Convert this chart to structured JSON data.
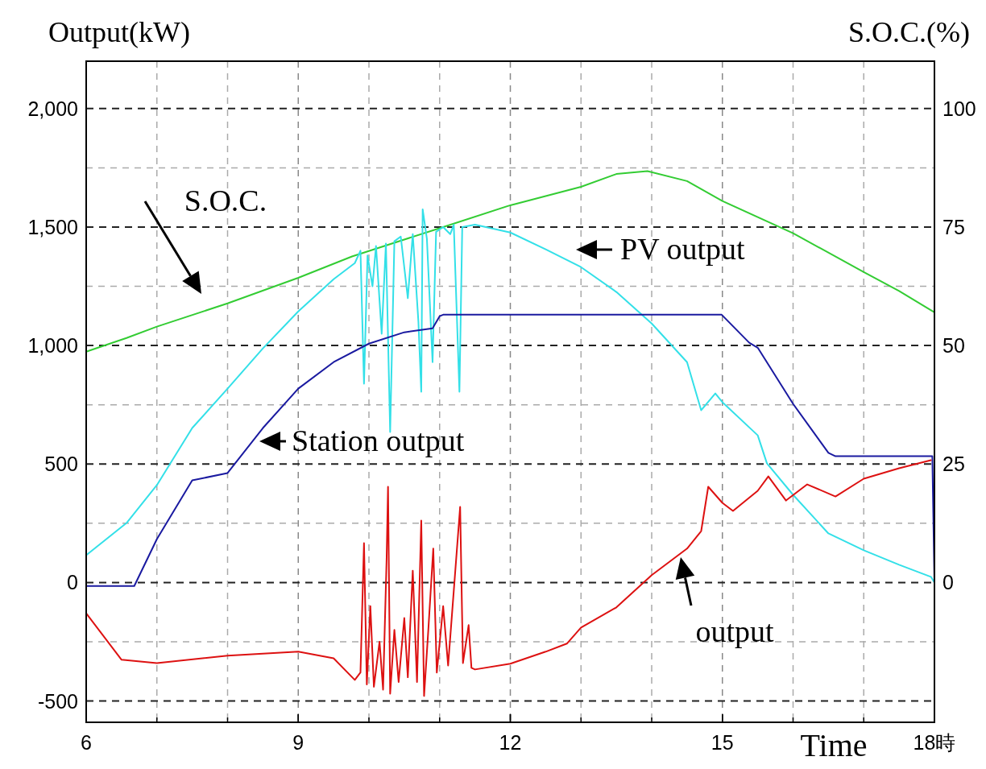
{
  "chart_data": {
    "type": "line",
    "xlabel": "Time",
    "ylabel": "Output(kW)",
    "y2label": "S.O.C.(%)",
    "xlim": [
      6,
      18
    ],
    "xticks": [
      6,
      9,
      12,
      15,
      {
        "value": 18,
        "label": "18時"
      }
    ],
    "ylim": [
      -590,
      2200
    ],
    "yticks": [
      {
        "value": -500,
        "label": "-500"
      },
      0,
      500,
      {
        "value": 1000,
        "label": "1,000"
      },
      {
        "value": 1500,
        "label": "1,500"
      },
      {
        "value": 2000,
        "label": "2,000"
      }
    ],
    "y2lim": [
      -29.5,
      110
    ],
    "y2ticks": [
      0,
      25,
      50,
      75,
      100
    ],
    "grid": true,
    "marker": "none",
    "line_style": "solid",
    "series": [
      {
        "name": "S.O.C.",
        "color": "#33cc33",
        "axis": "y2",
        "x": [
          6,
          6.57,
          7,
          8,
          9,
          9.76,
          11.05,
          12,
          13,
          13.5,
          13.94,
          14.5,
          15,
          16,
          17,
          17.5,
          18
        ],
        "values": [
          48.7,
          51.6,
          54,
          58.9,
          64.3,
          68.8,
          75,
          79.6,
          83.5,
          86.2,
          86.8,
          84.7,
          80.5,
          73.7,
          65.5,
          61.5,
          57
        ]
      },
      {
        "name": "PV output",
        "color": "#33e0e8",
        "x": [
          6,
          6.57,
          7,
          7.5,
          8,
          8.5,
          9,
          9.5,
          9.8,
          9.88,
          9.93,
          9.98,
          10.05,
          10.1,
          10.18,
          10.24,
          10.3,
          10.36,
          10.45,
          10.55,
          10.62,
          10.7,
          10.74,
          10.76,
          10.82,
          10.9,
          10.95,
          11.05,
          11.15,
          11.2,
          11.28,
          11.32,
          11.5,
          12,
          12.5,
          13,
          13.5,
          14,
          14.5,
          14.7,
          14.9,
          15,
          15.5,
          15.63,
          16,
          16.5,
          17,
          17.5,
          17.95,
          18
        ],
        "values": [
          115,
          251,
          411,
          652,
          818,
          988,
          1144,
          1280,
          1348,
          1400,
          839,
          1380,
          1250,
          1420,
          1050,
          1430,
          635,
          1440,
          1460,
          1200,
          1470,
          1100,
          805,
          1575,
          1450,
          930,
          1480,
          1500,
          1470,
          1510,
          805,
          1500,
          1510,
          1477,
          1406,
          1331,
          1226,
          1093,
          930,
          727,
          798,
          761,
          621,
          503,
          370,
          207,
          136,
          75,
          24,
          0
        ]
      },
      {
        "name": "Station output",
        "color": "#1a1aa0",
        "x": [
          6,
          6.68,
          7,
          7.5,
          8,
          8.5,
          9,
          9.5,
          10,
          10.5,
          10.9,
          11,
          11.05,
          14.99,
          15.38,
          15.5,
          16,
          16.5,
          16.6,
          17.97,
          18
        ],
        "values": [
          -15,
          -15,
          183,
          431,
          462,
          652,
          818,
          930,
          1008,
          1056,
          1073,
          1124,
          1130,
          1130,
          1012,
          991,
          754,
          547,
          533,
          533,
          0
        ]
      },
      {
        "name": "output",
        "color": "#dd1111",
        "x": [
          6,
          6.5,
          7,
          8,
          9,
          9.5,
          9.8,
          9.88,
          9.93,
          9.97,
          10.02,
          10.07,
          10.15,
          10.2,
          10.25,
          10.27,
          10.3,
          10.36,
          10.42,
          10.5,
          10.55,
          10.62,
          10.68,
          10.74,
          10.78,
          10.84,
          10.91,
          10.96,
          11.05,
          11.12,
          11.29,
          11.33,
          11.41,
          11.45,
          11.5,
          12,
          12.5,
          12.8,
          13,
          13.5,
          14,
          14.5,
          14.7,
          14.8,
          15,
          15.15,
          15.5,
          15.65,
          15.9,
          16.2,
          16.6,
          17,
          17.5,
          17.95
        ],
        "values": [
          -130,
          -326,
          -340,
          -309,
          -292,
          -320,
          -411,
          -380,
          166,
          -430,
          -100,
          -440,
          -250,
          -452,
          100,
          404,
          -469,
          -200,
          -420,
          -150,
          -400,
          50,
          -420,
          261,
          -479,
          -200,
          143,
          -380,
          -100,
          -350,
          319,
          -340,
          -180,
          -360,
          -367,
          -343,
          -292,
          -258,
          -190,
          -105,
          31,
          143,
          217,
          404,
          336,
          302,
          387,
          448,
          346,
          414,
          363,
          438,
          482,
          516
        ]
      }
    ]
  }
}
